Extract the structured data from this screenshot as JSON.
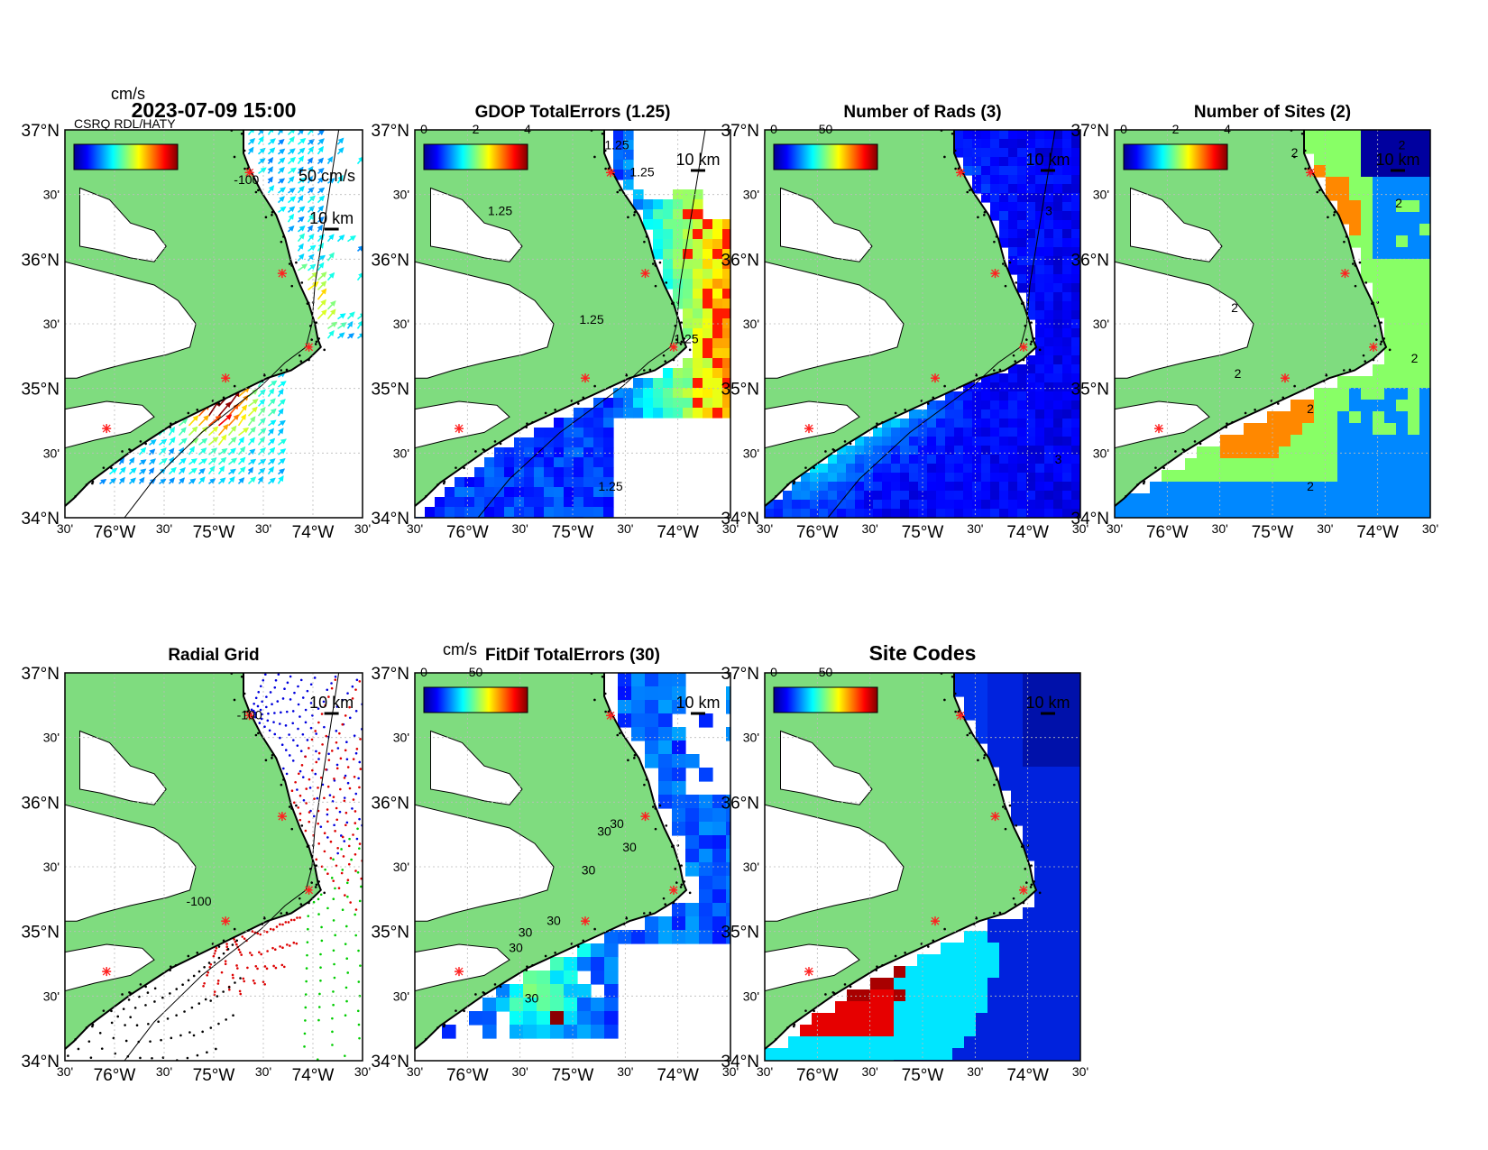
{
  "colors": {
    "land": "#7fdc7f",
    "coastline": "#000000",
    "site_marker": "#ff2020",
    "radial_sites": [
      "#0000dd",
      "#dd0000",
      "#00cc00",
      "#dd0000",
      "#000000"
    ],
    "site_code_palette": [
      "#0033ee",
      "#0022dd",
      "#0011aa",
      "#00e6ff",
      "#e60000",
      "#a80000"
    ],
    "colormap": "jet"
  },
  "axes": {
    "lat_labels": [
      "37°N",
      "30'",
      "36°N",
      "30'",
      "35°N",
      "30'",
      "34°N"
    ],
    "lon_labels": [
      "30'",
      "76°W",
      "30'",
      "75°W",
      "30'",
      "74°W",
      "30'"
    ]
  },
  "panels": [
    {
      "id": "currents",
      "title": "2023-07-09 15:00",
      "colorbar_unit": "cm/s",
      "colorbar_ticks": [],
      "vector_scale_label": "50 cm/s",
      "scale_label": "10 km",
      "contour_label": "-100",
      "legend_overlap_text": "CSRQ RDL/HATY"
    },
    {
      "id": "gdop",
      "title": "GDOP TotalErrors (1.25)",
      "colorbar_ticks": [
        "0",
        "2",
        "4"
      ],
      "scale_label": "10 km",
      "contour_labels": [
        "1.25",
        "1.25",
        "1.25",
        "1.25",
        "1.25",
        "1.25"
      ]
    },
    {
      "id": "nrads",
      "title": "Number of Rads (3)",
      "colorbar_ticks": [
        "0",
        "50"
      ],
      "scale_label": "10 km",
      "contour_labels": [
        "3",
        "3"
      ]
    },
    {
      "id": "nsites",
      "title": "Number of Sites (2)",
      "colorbar_ticks": [
        "0",
        "2",
        "4"
      ],
      "scale_label": "10 km",
      "contour_labels": [
        "2",
        "2",
        "2",
        "2",
        "2",
        "2",
        "2",
        "2"
      ]
    },
    {
      "id": "radialgrid",
      "title": "Radial Grid",
      "scale_label": "10 km",
      "contour_labels": [
        "-100",
        "-100"
      ]
    },
    {
      "id": "fitdif",
      "title": "FitDif TotalErrors (30)",
      "colorbar_unit": "cm/s",
      "colorbar_ticks": [
        "0",
        "50"
      ],
      "scale_label": "10 km",
      "contour_labels": [
        "30",
        "30",
        "30",
        "30",
        "30",
        "30",
        "30",
        "30"
      ]
    },
    {
      "id": "sitecodes",
      "title": "Site Codes",
      "colorbar_ticks": [
        "0",
        "50"
      ],
      "scale_label": "10 km"
    }
  ]
}
